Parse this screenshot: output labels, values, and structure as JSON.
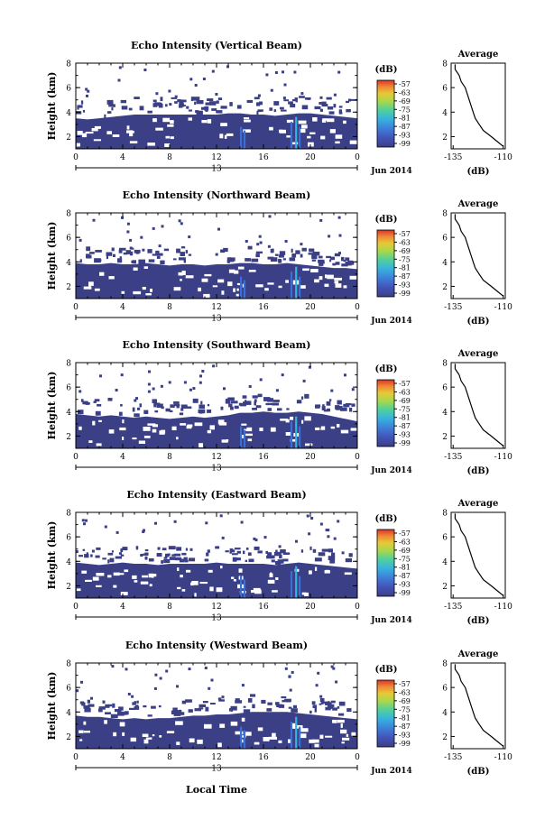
{
  "figure": {
    "colorbar_unit": "(dB)",
    "date_label": "Jun 2014",
    "xlabel_bottom": "Local Time",
    "avg_title": "Average",
    "avg_xlabel": "(dB)"
  },
  "chart_data": [
    {
      "type": "heatmap",
      "title": "Echo Intensity (Vertical Beam)",
      "ylabel": "Height (km)",
      "ylim": [
        1,
        8
      ],
      "yticks": [
        "8",
        "6",
        "4",
        "2"
      ],
      "xlim": [
        0,
        24
      ],
      "xticks": [
        "0",
        "4",
        "8",
        "12",
        "16",
        "20",
        "0"
      ],
      "sub_label": "13",
      "colorbar_ticks": [
        "-57",
        "-63",
        "-69",
        "-75",
        "-81",
        "-87",
        "-93",
        "-99"
      ],
      "echo_top_km": [
        3.5,
        3.4,
        3.5,
        3.6,
        3.7,
        3.8,
        3.8,
        3.8,
        3.8,
        3.8,
        3.8,
        3.8,
        3.8,
        3.9,
        3.9,
        3.8,
        3.8,
        3.7,
        3.8,
        3.9,
        3.9,
        3.8,
        3.7,
        3.6,
        3.5
      ],
      "avg_profile": {
        "xticks": [
          "-135",
          "-110"
        ],
        "xlim": [
          -136,
          -109
        ],
        "yticks": [
          "8",
          "6",
          "4",
          "2"
        ],
        "ylim": [
          1,
          8
        ],
        "height_km": [
          1.2,
          1.6,
          2.0,
          2.5,
          3.0,
          3.5,
          4.0,
          4.5,
          5.0,
          5.5,
          6.0,
          6.5,
          7.0,
          7.5,
          7.9
        ],
        "value_db": [
          -110,
          -113,
          -116,
          -120,
          -122,
          -124,
          -125,
          -126,
          -127,
          -128,
          -129,
          -131,
          -132,
          -134,
          -134
        ]
      }
    },
    {
      "type": "heatmap",
      "title": "Echo Intensity (Northward Beam)",
      "ylabel": "Height (km)",
      "ylim": [
        1,
        8
      ],
      "yticks": [
        "8",
        "6",
        "4",
        "2"
      ],
      "xlim": [
        0,
        24
      ],
      "xticks": [
        "0",
        "4",
        "8",
        "12",
        "16",
        "20",
        "0"
      ],
      "sub_label": "13",
      "colorbar_ticks": [
        "-57",
        "-63",
        "-69",
        "-75",
        "-81",
        "-87",
        "-93",
        "-99"
      ],
      "echo_top_km": [
        3.9,
        3.8,
        3.8,
        3.9,
        3.8,
        3.8,
        3.9,
        3.8,
        3.7,
        3.8,
        3.8,
        3.7,
        3.8,
        3.8,
        3.9,
        3.9,
        3.8,
        3.8,
        3.9,
        3.8,
        3.7,
        3.6,
        3.5,
        3.5,
        3.4
      ],
      "avg_profile": {
        "xticks": [
          "-135",
          "-110"
        ],
        "xlim": [
          -136,
          -109
        ],
        "yticks": [
          "8",
          "6",
          "4",
          "2"
        ],
        "ylim": [
          1,
          8
        ],
        "height_km": [
          1.2,
          1.6,
          2.0,
          2.5,
          3.0,
          3.5,
          4.0,
          4.5,
          5.0,
          5.5,
          6.0,
          6.5,
          7.0,
          7.5,
          7.9
        ],
        "value_db": [
          -110,
          -113,
          -116,
          -120,
          -122,
          -124,
          -125,
          -126,
          -127,
          -128,
          -129,
          -131,
          -132,
          -134,
          -134
        ]
      }
    },
    {
      "type": "heatmap",
      "title": "Echo Intensity (Southward Beam)",
      "ylabel": "Height (km)",
      "ylim": [
        1,
        8
      ],
      "yticks": [
        "8",
        "6",
        "4",
        "2"
      ],
      "xlim": [
        0,
        24
      ],
      "xticks": [
        "0",
        "4",
        "8",
        "12",
        "16",
        "20",
        "0"
      ],
      "sub_label": "13",
      "colorbar_ticks": [
        "-57",
        "-63",
        "-69",
        "-75",
        "-81",
        "-87",
        "-93",
        "-99"
      ],
      "echo_top_km": [
        3.8,
        3.7,
        3.6,
        3.7,
        3.6,
        3.5,
        3.6,
        3.5,
        3.4,
        3.5,
        3.6,
        3.5,
        3.6,
        3.7,
        3.9,
        3.9,
        4.0,
        3.9,
        3.9,
        4.0,
        3.9,
        3.8,
        3.6,
        3.4,
        3.2
      ],
      "avg_profile": {
        "xticks": [
          "-135",
          "-110"
        ],
        "xlim": [
          -136,
          -109
        ],
        "yticks": [
          "8",
          "6",
          "4",
          "2"
        ],
        "ylim": [
          1,
          8
        ],
        "height_km": [
          1.2,
          1.6,
          2.0,
          2.5,
          3.0,
          3.5,
          4.0,
          4.5,
          5.0,
          5.5,
          6.0,
          6.5,
          7.0,
          7.5,
          7.9
        ],
        "value_db": [
          -110,
          -113,
          -116,
          -120,
          -122,
          -124,
          -125,
          -126,
          -127,
          -128,
          -129,
          -131,
          -132,
          -134,
          -134
        ]
      }
    },
    {
      "type": "heatmap",
      "title": "Echo Intensity (Eastward Beam)",
      "ylabel": "Height (km)",
      "ylim": [
        1,
        8
      ],
      "yticks": [
        "8",
        "6",
        "4",
        "2"
      ],
      "xlim": [
        0,
        24
      ],
      "xticks": [
        "0",
        "4",
        "8",
        "12",
        "16",
        "20",
        "0"
      ],
      "sub_label": "13",
      "colorbar_ticks": [
        "-57",
        "-63",
        "-69",
        "-75",
        "-81",
        "-87",
        "-93",
        "-99"
      ],
      "echo_top_km": [
        3.9,
        3.8,
        3.7,
        3.8,
        3.9,
        3.8,
        3.8,
        3.7,
        3.8,
        3.8,
        3.8,
        3.8,
        3.9,
        3.8,
        3.8,
        3.8,
        3.8,
        3.7,
        3.8,
        3.9,
        3.8,
        3.7,
        3.6,
        3.5,
        3.4
      ],
      "avg_profile": {
        "xticks": [
          "-135",
          "-110"
        ],
        "xlim": [
          -136,
          -109
        ],
        "yticks": [
          "8",
          "6",
          "4",
          "2"
        ],
        "ylim": [
          1,
          8
        ],
        "height_km": [
          1.2,
          1.6,
          2.0,
          2.5,
          3.0,
          3.5,
          4.0,
          4.5,
          5.0,
          5.5,
          6.0,
          6.5,
          7.0,
          7.5,
          7.9
        ],
        "value_db": [
          -110,
          -113,
          -116,
          -120,
          -122,
          -124,
          -125,
          -126,
          -127,
          -128,
          -129,
          -131,
          -132,
          -134,
          -134
        ]
      }
    },
    {
      "type": "heatmap",
      "title": "Echo Intensity (Westward Beam)",
      "ylabel": "Height (km)",
      "ylim": [
        1,
        8
      ],
      "yticks": [
        "8",
        "6",
        "4",
        "2"
      ],
      "xlim": [
        0,
        24
      ],
      "xticks": [
        "0",
        "4",
        "8",
        "12",
        "16",
        "20",
        "0"
      ],
      "sub_label": "13",
      "colorbar_ticks": [
        "-57",
        "-63",
        "-69",
        "-75",
        "-81",
        "-87",
        "-93",
        "-99"
      ],
      "echo_top_km": [
        3.7,
        3.6,
        3.6,
        3.5,
        3.4,
        3.5,
        3.4,
        3.5,
        3.5,
        3.6,
        3.7,
        3.7,
        3.8,
        3.8,
        3.9,
        4.0,
        4.0,
        4.0,
        4.0,
        3.9,
        3.8,
        3.7,
        3.6,
        3.5,
        3.4
      ],
      "avg_profile": {
        "xticks": [
          "-135",
          "-110"
        ],
        "xlim": [
          -136,
          -109
        ],
        "yticks": [
          "8",
          "6",
          "4",
          "2"
        ],
        "ylim": [
          1,
          8
        ],
        "height_km": [
          1.2,
          1.6,
          2.0,
          2.5,
          3.0,
          3.5,
          4.0,
          4.5,
          5.0,
          5.5,
          6.0,
          6.5,
          7.0,
          7.5,
          7.9
        ],
        "value_db": [
          -110,
          -113,
          -116,
          -120,
          -122,
          -124,
          -125,
          -126,
          -127,
          -128,
          -129,
          -131,
          -132,
          -134,
          -134
        ]
      }
    }
  ],
  "colors": {
    "echo_base": "#3a3f86",
    "echo_streak": "#3a6fd6",
    "echo_streak_bright": "#34b4e0",
    "colormap": [
      "#3a3f86",
      "#4353b8",
      "#3d7fd9",
      "#37b3df",
      "#4fcf9e",
      "#a6d84d",
      "#e6c935",
      "#f08a35",
      "#d9352a"
    ]
  }
}
